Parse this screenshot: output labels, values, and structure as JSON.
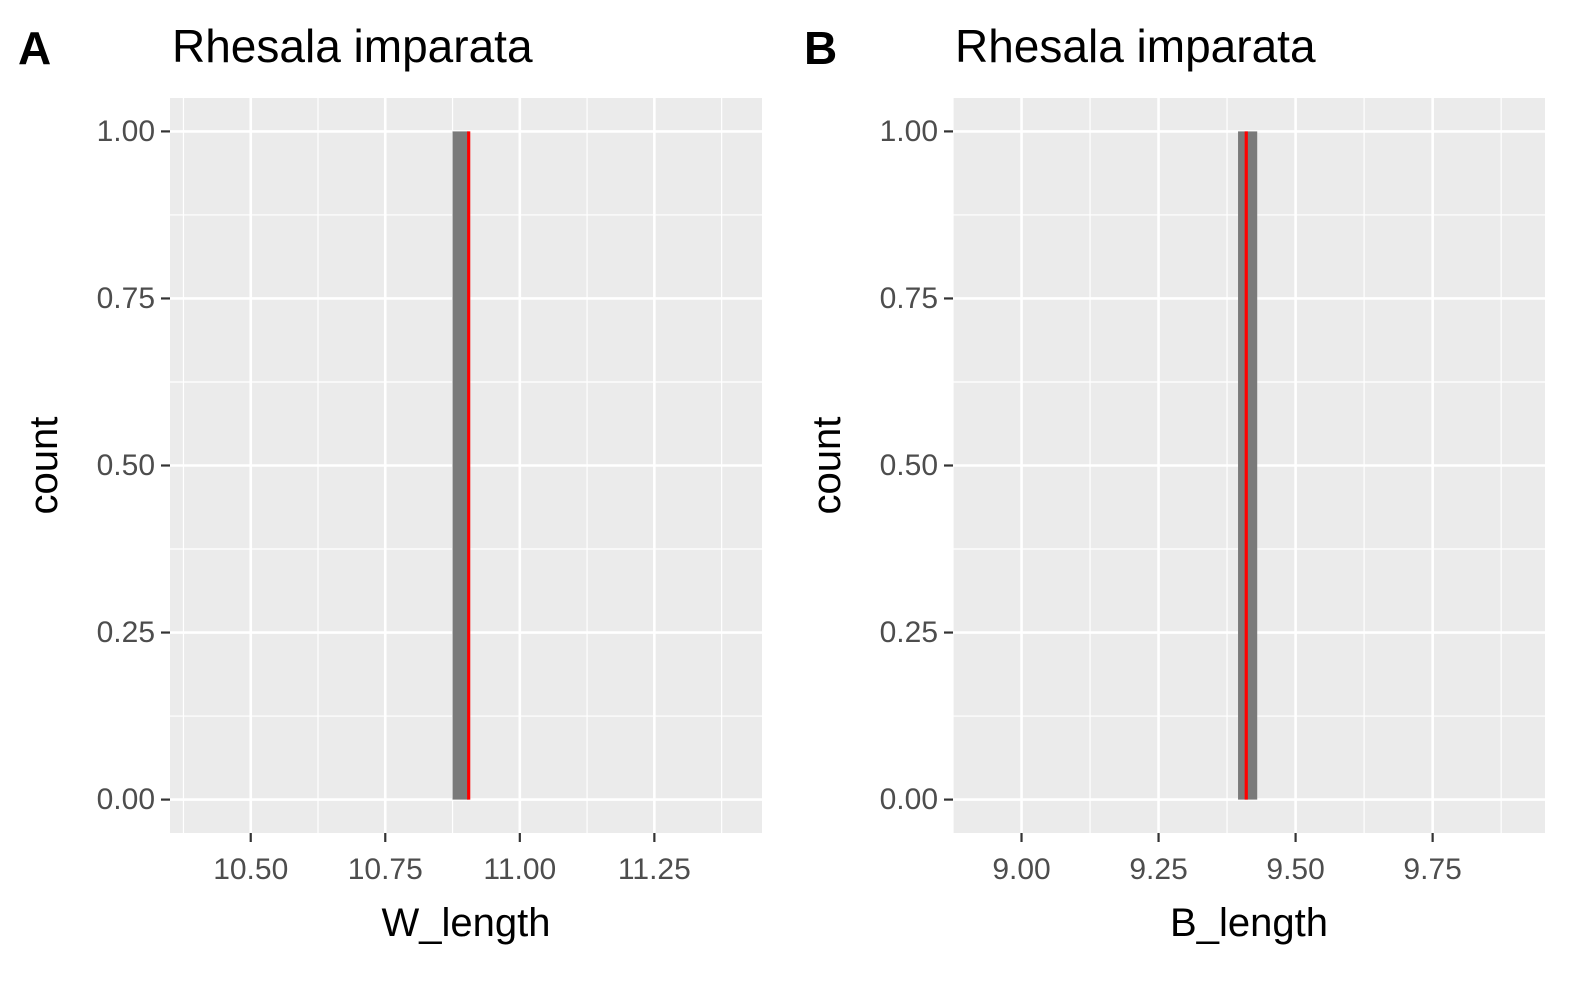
{
  "colors": {
    "panel_background": "#ebebeb",
    "grid_major": "#ffffff",
    "grid_minor": "#f5f5f5",
    "bar_fill": "#7a7a7a",
    "reference_line": "#ff0000",
    "tick_mark": "#333333",
    "tick_label": "#4d4d4d"
  },
  "chart_data": [
    {
      "type": "bar",
      "panel_label": "A",
      "title": "Rhesala imparata",
      "xlabel": "W_length",
      "ylabel": "count",
      "xlim": [
        10.35,
        11.45
      ],
      "ylim": [
        -0.05,
        1.05
      ],
      "x_ticks": [
        10.5,
        10.75,
        11.0,
        11.25
      ],
      "x_tick_labels": [
        "10.50",
        "10.75",
        "11.00",
        "11.25"
      ],
      "y_ticks": [
        0,
        0.25,
        0.5,
        0.75,
        1.0
      ],
      "y_tick_labels": [
        "0.00",
        "0.25",
        "0.50",
        "0.75",
        "1.00"
      ],
      "grid": true,
      "bars": [
        {
          "x_start": 10.875,
          "x_end": 10.905,
          "count": 1
        }
      ],
      "vline": 10.905
    },
    {
      "type": "bar",
      "panel_label": "B",
      "title": "Rhesala imparata",
      "xlabel": "B_length",
      "ylabel": "count",
      "xlim": [
        8.875,
        9.955
      ],
      "ylim": [
        -0.05,
        1.05
      ],
      "x_ticks": [
        9.0,
        9.25,
        9.5,
        9.75
      ],
      "x_tick_labels": [
        "9.00",
        "9.25",
        "9.50",
        "9.75"
      ],
      "y_ticks": [
        0,
        0.25,
        0.5,
        0.75,
        1.0
      ],
      "y_tick_labels": [
        "0.00",
        "0.25",
        "0.50",
        "0.75",
        "1.00"
      ],
      "grid": true,
      "bars": [
        {
          "x_start": 9.395,
          "x_end": 9.43,
          "count": 1
        }
      ],
      "vline": 9.41
    }
  ]
}
